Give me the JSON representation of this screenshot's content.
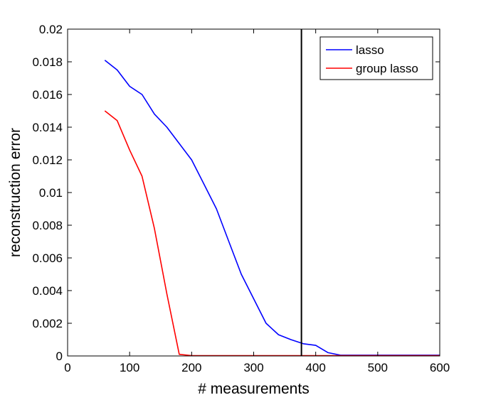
{
  "chart_data": {
    "type": "line",
    "title": "",
    "xlabel": "# measurements",
    "ylabel": "reconstruction error",
    "xlim": [
      0,
      600
    ],
    "ylim": [
      0,
      0.02
    ],
    "xticks": [
      0,
      100,
      200,
      300,
      400,
      500,
      600
    ],
    "xtick_labels": [
      "0",
      "100",
      "200",
      "300",
      "400",
      "500",
      "600"
    ],
    "yticks": [
      0,
      0.002,
      0.004,
      0.006,
      0.008,
      0.01,
      0.012,
      0.014,
      0.016,
      0.018,
      0.02
    ],
    "ytick_labels": [
      "0",
      "0.002",
      "0.004",
      "0.006",
      "0.008",
      "0.01",
      "0.012",
      "0.014",
      "0.016",
      "0.018",
      "0.02"
    ],
    "grid": false,
    "legend_position": "top-right",
    "vline": {
      "x": 377,
      "color": "#000000"
    },
    "series": [
      {
        "name": "lasso",
        "color": "#0000ff",
        "x": [
          60,
          80,
          100,
          120,
          140,
          160,
          180,
          200,
          220,
          240,
          260,
          280,
          300,
          320,
          340,
          360,
          380,
          400,
          420,
          440,
          460,
          480,
          500,
          520,
          540,
          560,
          580,
          600
        ],
        "y": [
          0.0181,
          0.0175,
          0.0165,
          0.016,
          0.0148,
          0.014,
          0.013,
          0.012,
          0.0105,
          0.009,
          0.007,
          0.005,
          0.0035,
          0.002,
          0.0013,
          0.001,
          0.00075,
          0.00065,
          0.0002,
          5e-05,
          5e-05,
          5e-05,
          5e-05,
          5e-05,
          5e-05,
          5e-05,
          5e-05,
          5e-05
        ]
      },
      {
        "name": "group lasso",
        "color": "#ff0000",
        "x": [
          60,
          80,
          100,
          120,
          140,
          160,
          180,
          200,
          220,
          240,
          260,
          280,
          300,
          320,
          340,
          360,
          380,
          400,
          420,
          440,
          460,
          480,
          500,
          520,
          540,
          560,
          580,
          600
        ],
        "y": [
          0.015,
          0.0144,
          0.0126,
          0.011,
          0.0078,
          0.0038,
          0.0001,
          2e-05,
          2e-05,
          2e-05,
          2e-05,
          2e-05,
          2e-05,
          2e-05,
          2e-05,
          2e-05,
          2e-05,
          2e-05,
          2e-05,
          2e-05,
          2e-05,
          2e-05,
          2e-05,
          2e-05,
          2e-05,
          2e-05,
          2e-05,
          2e-05
        ]
      }
    ]
  }
}
